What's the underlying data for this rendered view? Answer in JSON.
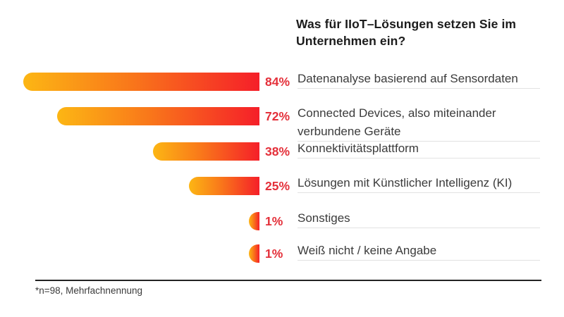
{
  "title": {
    "line1": "Was für IIoT–Lösungen setzen Sie im",
    "line2": "Unternehmen ein?"
  },
  "footnote": "*n=98, Mehrfachnennung",
  "colors": {
    "bar_gradient_start": "#FCB614",
    "bar_gradient_mid": "#F9781A",
    "bar_gradient_end": "#F51F29",
    "percent_text": "#E4303A",
    "label_text": "#3B3B3B",
    "title_text": "#1C1C1C",
    "divider": "#E2E2E2",
    "footer_rule": "#232323",
    "background": "#FFFFFF"
  },
  "rows": [
    {
      "pct": "84%",
      "value": 84,
      "label": "Datenanalyse basierend auf Sensordaten"
    },
    {
      "pct": "72%",
      "value": 72,
      "label": "Connected Devices, also miteinander verbundene Geräte"
    },
    {
      "pct": "38%",
      "value": 38,
      "label": "Konnektivitätsplattform"
    },
    {
      "pct": "25%",
      "value": 25,
      "label": "Lösungen mit Künstlicher Intelligenz (KI)"
    },
    {
      "pct": "1%",
      "value": 1,
      "label": "Sonstiges"
    },
    {
      "pct": "1%",
      "value": 1,
      "label": "Weiß nicht / keine Angabe"
    }
  ],
  "chart_data": {
    "type": "bar",
    "orientation": "horizontal",
    "bar_alignment": "right-aligned, bars grow leftward",
    "title": "Was für IIoT–Lösungen setzen Sie im Unternehmen ein?",
    "categories": [
      "Datenanalyse basierend auf Sensordaten",
      "Connected Devices, also miteinander verbundene Geräte",
      "Konnektivitätsplattform",
      "Lösungen mit Künstlicher Intelligenz (KI)",
      "Sonstiges",
      "Weiß nicht / keine Angabe"
    ],
    "values": [
      84,
      72,
      38,
      25,
      1,
      1
    ],
    "value_labels": [
      "84%",
      "72%",
      "38%",
      "25%",
      "1%",
      "1%"
    ],
    "unit": "%",
    "xlim": [
      0,
      100
    ],
    "grid": false,
    "legend": false,
    "footnote": "*n=98, Mehrfachnennung",
    "bar_style": "gradient yellow-to-red, rounded left cap"
  }
}
